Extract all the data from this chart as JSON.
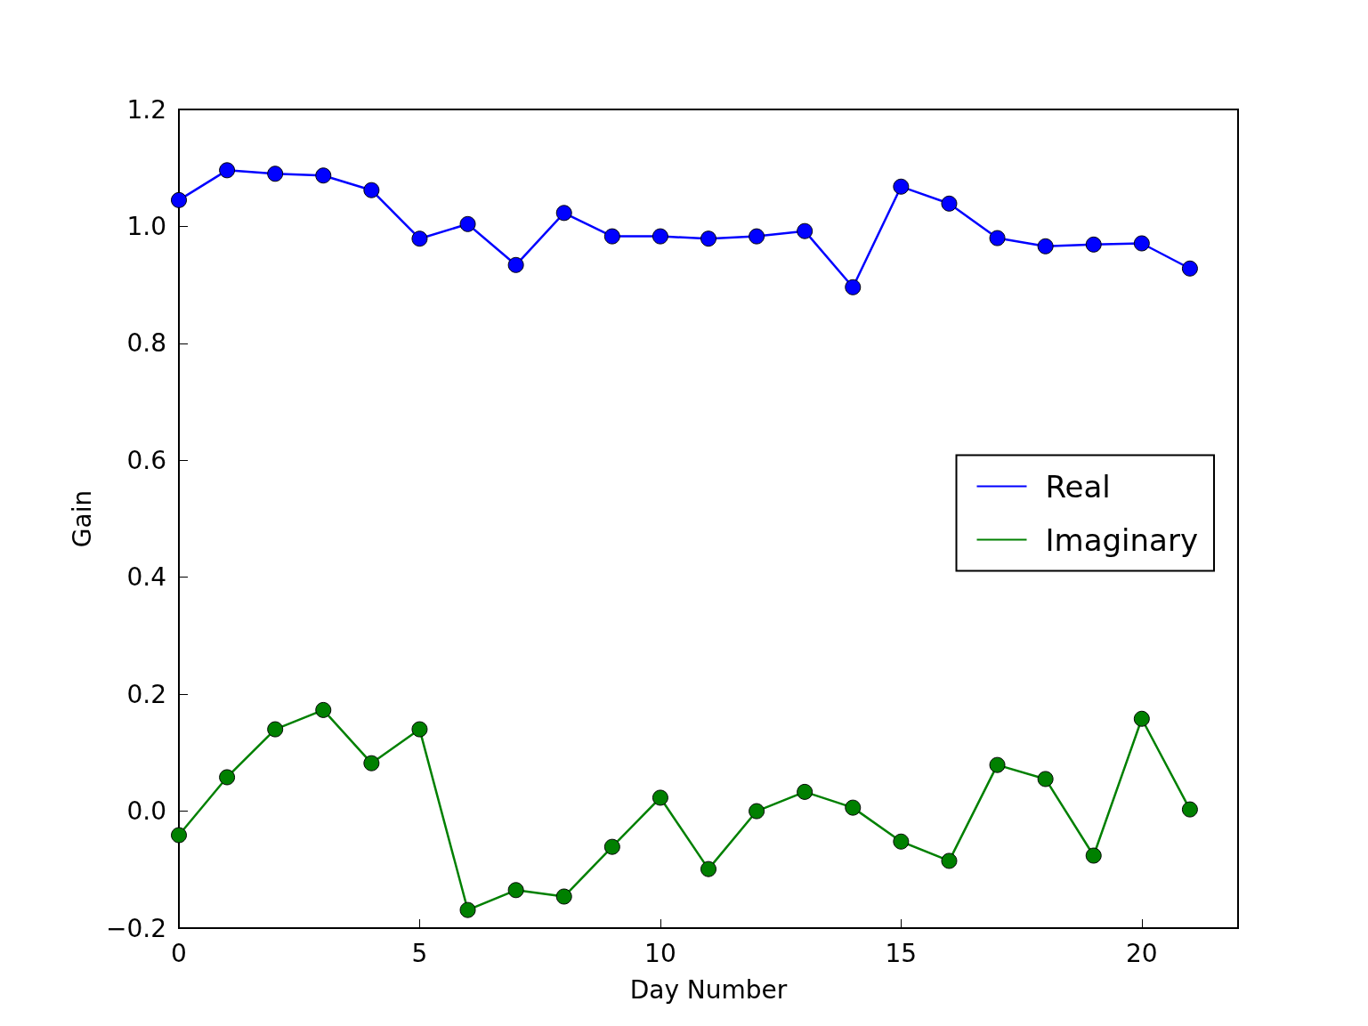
{
  "chart_data": {
    "type": "line",
    "xlabel": "Day Number",
    "ylabel": "Gain",
    "x": [
      0,
      1,
      2,
      3,
      4,
      5,
      6,
      7,
      8,
      9,
      10,
      11,
      12,
      13,
      14,
      15,
      16,
      17,
      18,
      19,
      20,
      21
    ],
    "series": [
      {
        "name": "Real",
        "color": "#0000ff",
        "values": [
          1.045,
          1.096,
          1.09,
          1.087,
          1.062,
          0.979,
          1.004,
          0.934,
          1.023,
          0.983,
          0.983,
          0.979,
          0.983,
          0.992,
          0.896,
          1.068,
          1.039,
          0.98,
          0.966,
          0.969,
          0.971,
          0.928
        ]
      },
      {
        "name": "Imaginary",
        "color": "#008000",
        "values": [
          -0.041,
          0.058,
          0.14,
          0.173,
          0.082,
          0.14,
          -0.169,
          -0.135,
          -0.146,
          -0.061,
          0.023,
          -0.099,
          0.0,
          0.033,
          0.006,
          -0.052,
          -0.085,
          0.079,
          0.055,
          -0.076,
          0.158,
          0.003
        ]
      }
    ],
    "xlim": [
      0,
      22
    ],
    "xticks": [
      0,
      5,
      10,
      15,
      20
    ],
    "ylim": [
      -0.2,
      1.2
    ],
    "yticks": [
      {
        "value": -0.2,
        "label": "−0.2"
      },
      {
        "value": 0,
        "label": "0.0"
      },
      0.2,
      0.4,
      0.6,
      0.8,
      {
        "value": 1,
        "label": "1.0"
      },
      1.2
    ],
    "grid": false,
    "legend": "right",
    "marker": "circle",
    "line_style": "solid"
  }
}
